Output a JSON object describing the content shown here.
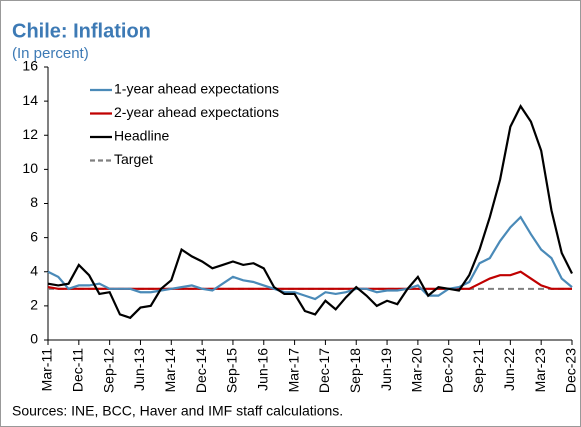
{
  "chart_data": {
    "type": "line",
    "title": "Chile: Inflation",
    "subtitle": "(In percent)",
    "categories": [
      "Mar-11",
      null,
      null,
      "Dec-11",
      null,
      null,
      "Sep-12",
      null,
      null,
      "Jun-13",
      null,
      null,
      "Mar-14",
      null,
      null,
      "Dec-14",
      null,
      null,
      "Sep-15",
      null,
      null,
      "Jun-16",
      null,
      null,
      "Mar-17",
      null,
      null,
      "Dec-17",
      null,
      null,
      "Sep-18",
      null,
      null,
      "Jun-19",
      null,
      null,
      "Mar-20",
      null,
      null,
      "Dec-20",
      null,
      null,
      "Sep-21",
      null,
      null,
      "Jun-22",
      null,
      null,
      "Mar-23",
      null,
      null,
      "Dec-23"
    ],
    "series": [
      {
        "name": "1-year ahead expectations",
        "color": "#4a8ab8",
        "values": [
          4.0,
          3.7,
          3.0,
          3.2,
          3.2,
          3.3,
          3.0,
          3.0,
          3.0,
          2.8,
          2.8,
          2.9,
          3.0,
          3.1,
          3.2,
          3.0,
          2.9,
          3.3,
          3.7,
          3.5,
          3.4,
          3.2,
          3.0,
          2.8,
          2.8,
          2.6,
          2.4,
          2.8,
          2.7,
          2.8,
          3.0,
          3.0,
          2.8,
          2.9,
          2.9,
          3.0,
          3.2,
          2.6,
          2.6,
          3.0,
          3.1,
          3.4,
          4.5,
          4.8,
          5.8,
          6.6,
          7.2,
          6.2,
          5.3,
          4.8,
          3.6,
          3.1
        ]
      },
      {
        "name": "2-year ahead expectations",
        "color": "#c00000",
        "values": [
          3.1,
          3.0,
          3.0,
          3.0,
          3.0,
          3.0,
          3.0,
          3.0,
          3.0,
          3.0,
          3.0,
          3.0,
          3.0,
          3.0,
          3.0,
          3.0,
          3.0,
          3.0,
          3.0,
          3.0,
          3.0,
          3.0,
          3.0,
          3.0,
          3.0,
          3.0,
          3.0,
          3.0,
          3.0,
          3.0,
          3.0,
          3.0,
          3.0,
          3.0,
          3.0,
          3.0,
          3.0,
          3.0,
          3.0,
          3.0,
          3.0,
          3.0,
          3.3,
          3.6,
          3.8,
          3.8,
          4.0,
          3.6,
          3.2,
          3.0,
          3.0,
          3.0
        ]
      },
      {
        "name": "Headline",
        "color": "#000000",
        "values": [
          3.3,
          3.2,
          3.3,
          4.4,
          3.8,
          2.7,
          2.8,
          1.5,
          1.3,
          1.9,
          2.0,
          3.0,
          3.5,
          5.3,
          4.9,
          4.6,
          4.2,
          4.4,
          4.6,
          4.4,
          4.5,
          4.2,
          3.1,
          2.7,
          2.7,
          1.7,
          1.5,
          2.3,
          1.8,
          2.5,
          3.1,
          2.6,
          2.0,
          2.3,
          2.1,
          3.0,
          3.7,
          2.6,
          3.1,
          3.0,
          2.9,
          3.8,
          5.3,
          7.2,
          9.4,
          12.5,
          13.7,
          12.8,
          11.1,
          7.6,
          5.1,
          3.9
        ]
      },
      {
        "name": "Target",
        "color": "#808080",
        "dashed": true,
        "values": [
          3,
          3,
          3,
          3,
          3,
          3,
          3,
          3,
          3,
          3,
          3,
          3,
          3,
          3,
          3,
          3,
          3,
          3,
          3,
          3,
          3,
          3,
          3,
          3,
          3,
          3,
          3,
          3,
          3,
          3,
          3,
          3,
          3,
          3,
          3,
          3,
          3,
          3,
          3,
          3,
          3,
          3,
          3,
          3,
          3,
          3,
          3,
          3,
          3,
          3,
          3,
          3
        ]
      }
    ],
    "ylim": [
      0,
      16
    ],
    "yticks": [
      0,
      2,
      4,
      6,
      8,
      10,
      12,
      14,
      16
    ],
    "legend": "upper left",
    "note": "Sources: INE, BCC, Haver and IMF staff calculations."
  }
}
